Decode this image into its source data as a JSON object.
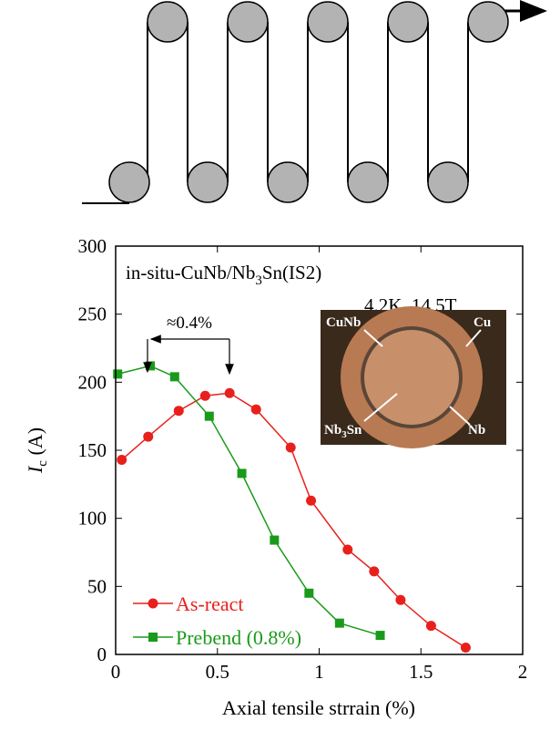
{
  "chart_data": {
    "type": "line",
    "annotation": {
      "parts": [
        "in-situ-CuNb/Nb",
        "3",
        "Sn(IS2)"
      ]
    },
    "condition": "4.2K, 14.5T",
    "shift_label": "≈0.4%",
    "inset": {
      "labels": [
        "CuNb",
        "Cu",
        "Nb",
        "3",
        "Sn",
        "Nb"
      ]
    },
    "ylabel": {
      "parts": [
        "I",
        "c",
        " (A)"
      ]
    },
    "xlabel": "Axial tensile strrain (%)",
    "xlim": [
      0,
      2
    ],
    "xticks": [
      0,
      0.5,
      1,
      1.5,
      2
    ],
    "ylim": [
      0,
      300
    ],
    "yticks": [
      0,
      50,
      100,
      150,
      200,
      250,
      300
    ],
    "series": [
      {
        "name": "As-react",
        "color": "#e8201c",
        "marker": "circle",
        "x": [
          0.03,
          0.16,
          0.31,
          0.44,
          0.56,
          0.69,
          0.86,
          0.96,
          1.14,
          1.27,
          1.4,
          1.55,
          1.72
        ],
        "values": [
          143,
          160,
          179,
          190,
          192,
          180,
          152,
          113,
          77,
          61,
          40,
          21,
          5
        ]
      },
      {
        "name": "Prebend (0.8%)",
        "color": "#1a9a1a",
        "marker": "square",
        "x": [
          0.01,
          0.17,
          0.29,
          0.46,
          0.62,
          0.78,
          0.95,
          1.1,
          1.3
        ],
        "values": [
          206,
          212,
          204,
          175,
          133,
          84,
          45,
          23,
          14
        ]
      }
    ]
  }
}
